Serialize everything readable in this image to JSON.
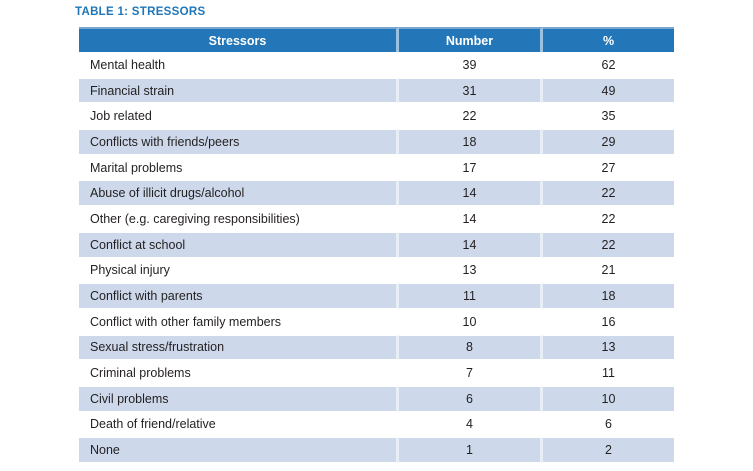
{
  "title": "TABLE 1: STRESSORS",
  "table": {
    "headers": [
      "Stressors",
      "Number",
      "%"
    ],
    "rows": [
      {
        "stressor": "Mental health",
        "number": "39",
        "percent": "62"
      },
      {
        "stressor": "Financial strain",
        "number": "31",
        "percent": "49"
      },
      {
        "stressor": "Job related",
        "number": "22",
        "percent": "35"
      },
      {
        "stressor": "Conflicts with friends/peers",
        "number": "18",
        "percent": "29"
      },
      {
        "stressor": "Marital problems",
        "number": "17",
        "percent": "27"
      },
      {
        "stressor": "Abuse of illicit drugs/alcohol",
        "number": "14",
        "percent": "22"
      },
      {
        "stressor": "Other (e.g. caregiving responsibilities)",
        "number": "14",
        "percent": "22"
      },
      {
        "stressor": "Conflict at school",
        "number": "14",
        "percent": "22"
      },
      {
        "stressor": "Physical injury",
        "number": "13",
        "percent": "21"
      },
      {
        "stressor": "Conflict with parents",
        "number": "11",
        "percent": "18"
      },
      {
        "stressor": "Conflict with other family members",
        "number": "10",
        "percent": "16"
      },
      {
        "stressor": "Sexual stress/frustration",
        "number": "8",
        "percent": "13"
      },
      {
        "stressor": "Criminal problems",
        "number": "7",
        "percent": "11"
      },
      {
        "stressor": "Civil problems",
        "number": "6",
        "percent": "10"
      },
      {
        "stressor": "Death of friend/relative",
        "number": "4",
        "percent": "6"
      },
      {
        "stressor": "None",
        "number": "1",
        "percent": "2"
      }
    ]
  },
  "chart_data": {
    "type": "table",
    "title": "TABLE 1: STRESSORS",
    "columns": [
      "Stressors",
      "Number",
      "%"
    ],
    "rows": [
      [
        "Mental health",
        39,
        62
      ],
      [
        "Financial strain",
        31,
        49
      ],
      [
        "Job related",
        22,
        35
      ],
      [
        "Conflicts with friends/peers",
        18,
        29
      ],
      [
        "Marital problems",
        17,
        27
      ],
      [
        "Abuse of illicit drugs/alcohol",
        14,
        22
      ],
      [
        "Other (e.g. caregiving responsibilities)",
        14,
        22
      ],
      [
        "Conflict at school",
        14,
        22
      ],
      [
        "Physical injury",
        13,
        21
      ],
      [
        "Conflict with parents",
        11,
        18
      ],
      [
        "Conflict with other family members",
        10,
        16
      ],
      [
        "Sexual stress/frustration",
        8,
        13
      ],
      [
        "Criminal problems",
        7,
        11
      ],
      [
        "Civil problems",
        6,
        10
      ],
      [
        "Death of friend/relative",
        4,
        6
      ],
      [
        "None",
        1,
        2
      ]
    ]
  },
  "colors": {
    "header_bg": "#2377b8",
    "header_text": "#ffffff",
    "title_text": "#1e76b8",
    "row_shaded": "#cdd9eb",
    "row_white": "#ffffff",
    "body_text": "#231f20"
  }
}
